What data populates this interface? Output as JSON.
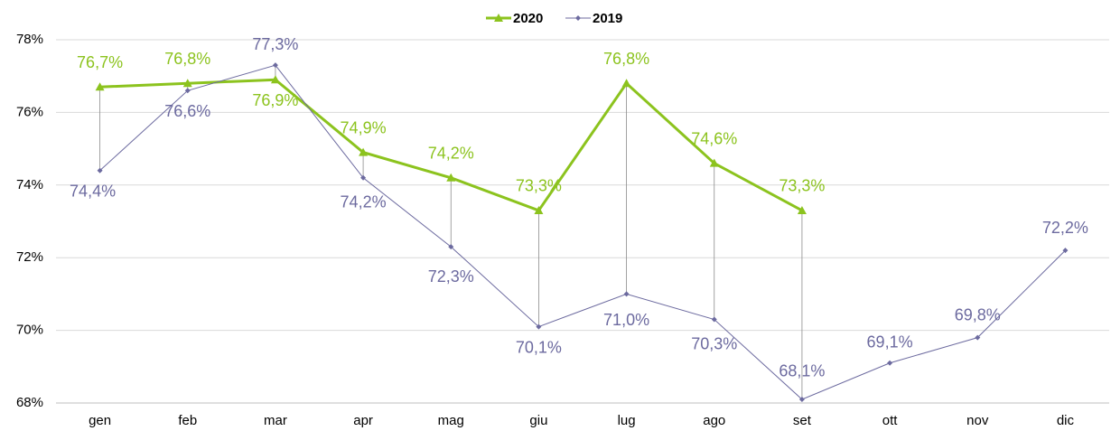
{
  "chart_data": {
    "type": "line",
    "categories": [
      "gen",
      "feb",
      "mar",
      "apr",
      "mag",
      "giu",
      "lug",
      "ago",
      "set",
      "ott",
      "nov",
      "dic"
    ],
    "series": [
      {
        "name": "2020",
        "color": "#8cc31e",
        "marker": "triangle",
        "values": [
          76.7,
          76.8,
          76.9,
          74.9,
          74.2,
          73.3,
          76.8,
          74.6,
          73.3,
          null,
          null,
          null
        ],
        "value_labels": [
          "76,7%",
          "76,8%",
          "76,9%",
          "74,9%",
          "74,2%",
          "73,3%",
          "76,8%",
          "74,6%",
          "73,3%",
          null,
          null,
          null
        ]
      },
      {
        "name": "2019",
        "color": "#6c6a9f",
        "marker": "diamond",
        "values": [
          74.4,
          76.6,
          77.3,
          74.2,
          72.3,
          70.1,
          71.0,
          70.3,
          68.1,
          69.1,
          69.8,
          72.2
        ],
        "value_labels": [
          "74,4%",
          "76,6%",
          "77,3%",
          "74,2%",
          "72,3%",
          "70,1%",
          "71,0%",
          "70,3%",
          "68,1%",
          "69,1%",
          "69,8%",
          "72,2%"
        ]
      }
    ],
    "ylim": [
      68,
      78
    ],
    "yticks": [
      {
        "value": 68,
        "label": "68%"
      },
      {
        "value": 70,
        "label": "70%"
      },
      {
        "value": 72,
        "label": "72%"
      },
      {
        "value": 74,
        "label": "74%"
      },
      {
        "value": 76,
        "label": "76%"
      },
      {
        "value": 78,
        "label": "78%"
      }
    ],
    "grid": true,
    "drop_lines": true,
    "legend": "top"
  }
}
